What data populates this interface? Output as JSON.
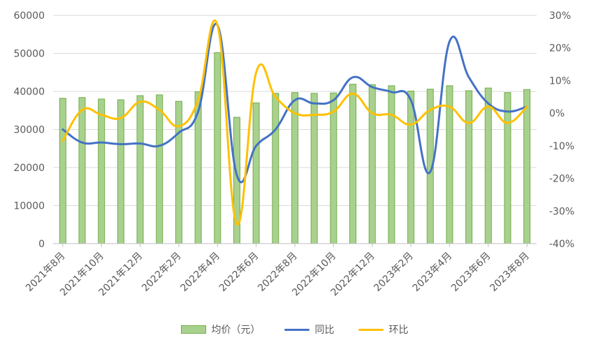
{
  "chart_data": {
    "type": "bar",
    "categories": [
      "2021年8月",
      "2021年9月",
      "2021年10月",
      "2021年11月",
      "2021年12月",
      "2022年1月",
      "2022年2月",
      "2022年3月",
      "2022年4月",
      "2022年5月",
      "2022年6月",
      "2022年7月",
      "2022年8月",
      "2022年9月",
      "2022年10月",
      "2022年11月",
      "2022年12月",
      "2023年1月",
      "2023年2月",
      "2023年3月",
      "2023年4月",
      "2023年5月",
      "2023年6月",
      "2023年7月",
      "2023年8月"
    ],
    "x_tick_labels": [
      "2021年8月",
      "2021年10月",
      "2021年12月",
      "2022年2月",
      "2022年4月",
      "2022年6月",
      "2022年8月",
      "2022年10月",
      "2022年12月",
      "2023年2月",
      "2023年4月",
      "2023年6月",
      "2023年8月"
    ],
    "series": [
      {
        "name": "均价（元）",
        "type": "bar",
        "axis": "left",
        "color": "#a9d18e",
        "border": "#70ad47",
        "values": [
          38200,
          38400,
          38000,
          37800,
          38900,
          39100,
          37400,
          39900,
          50200,
          33200,
          37000,
          39500,
          39700,
          39500,
          39600,
          41900,
          41800,
          41500,
          40100,
          40600,
          41500,
          40200,
          40900,
          39700,
          40500
        ]
      },
      {
        "name": "同比",
        "type": "line",
        "axis": "right",
        "color": "#4472c4",
        "values": [
          -5,
          -9,
          -9,
          -9.5,
          -9.3,
          -10,
          -6,
          0.5,
          27,
          -19,
          -10,
          -5,
          4,
          3,
          4,
          11,
          8,
          6.5,
          4,
          -18,
          22,
          11,
          3,
          0.5,
          2
        ]
      },
      {
        "name": "环比",
        "type": "line",
        "axis": "right",
        "color": "#ffc000",
        "values": [
          -8.5,
          1,
          -0.5,
          -1.5,
          3.5,
          1,
          -4,
          4,
          27,
          -34,
          12.5,
          5,
          0,
          -0.5,
          0.5,
          6,
          0,
          -0.5,
          -3.5,
          1,
          2,
          -3,
          2,
          -3,
          2
        ]
      }
    ],
    "y_left": {
      "min": 0,
      "max": 60000,
      "ticks": [
        "0",
        "10000",
        "20000",
        "30000",
        "40000",
        "50000",
        "60000"
      ]
    },
    "y_right": {
      "min": -40,
      "max": 30,
      "ticks": [
        "-40%",
        "-30%",
        "-20%",
        "-10%",
        "0%",
        "10%",
        "20%",
        "30%"
      ]
    },
    "grid": true,
    "legend_position": "bottom"
  }
}
